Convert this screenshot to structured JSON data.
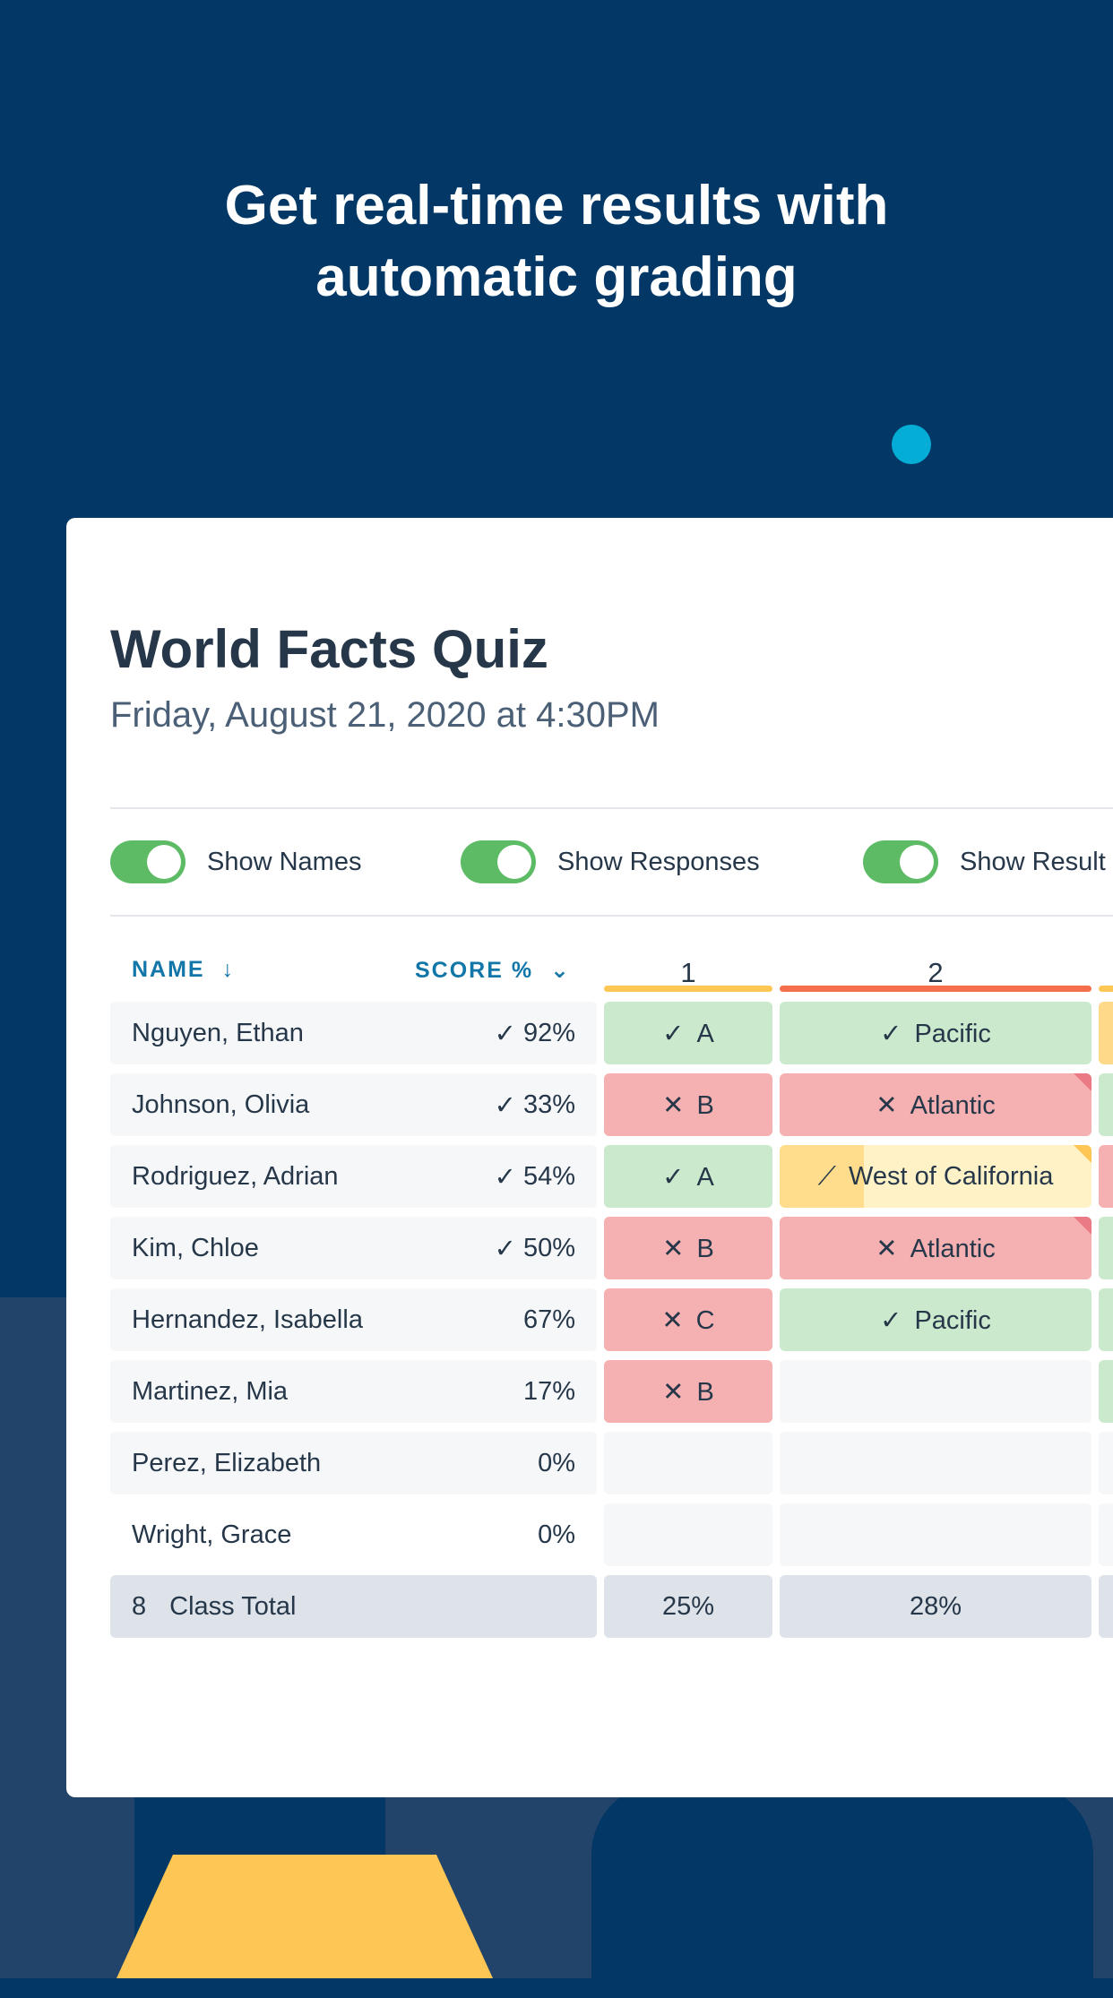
{
  "headline": [
    "Get real-time results with",
    "automatic grading"
  ],
  "quiz": {
    "title": "World Facts Quiz",
    "date": "Friday, August 21, 2020 at 4:30PM"
  },
  "toggles": [
    {
      "label": "Show Names",
      "on": true
    },
    {
      "label": "Show Responses",
      "on": true
    },
    {
      "label": "Show Result",
      "on": true
    }
  ],
  "table": {
    "name_header": "NAME",
    "name_sort_icon": "arrow-down-icon",
    "score_header": "SCORE %",
    "score_sort_icon": "chevron-down-icon",
    "questions": [
      {
        "label": "1",
        "color": "#fec654"
      },
      {
        "label": "2",
        "color": "#f46f4b"
      }
    ],
    "rows": [
      {
        "name": "Nguyen, Ethan",
        "check": "✓",
        "score": "92%",
        "answers": [
          {
            "status": "correct",
            "mark": "✓",
            "text": "A"
          },
          {
            "status": "correct",
            "mark": "✓",
            "text": "Pacific"
          }
        ]
      },
      {
        "name": "Johnson, Olivia",
        "check": "✓",
        "score": "33%",
        "answers": [
          {
            "status": "wrong",
            "mark": "✕",
            "text": "B"
          },
          {
            "status": "wrong",
            "mark": "✕",
            "text": "Atlantic",
            "flag": "red"
          }
        ]
      },
      {
        "name": "Rodriguez, Adrian",
        "check": "✓",
        "score": "54%",
        "answers": [
          {
            "status": "correct",
            "mark": "✓",
            "text": "A"
          },
          {
            "status": "partial",
            "mark": "⟋",
            "text": "West of California",
            "flag": "yellow"
          }
        ]
      },
      {
        "name": "Kim, Chloe",
        "check": "✓",
        "score": "50%",
        "answers": [
          {
            "status": "wrong",
            "mark": "✕",
            "text": "B"
          },
          {
            "status": "wrong",
            "mark": "✕",
            "text": "Atlantic",
            "flag": "red"
          }
        ]
      },
      {
        "name": "Hernandez, Isabella",
        "check": "",
        "score": "67%",
        "answers": [
          {
            "status": "wrong",
            "mark": "✕",
            "text": "C"
          },
          {
            "status": "correct",
            "mark": "✓",
            "text": "Pacific"
          }
        ]
      },
      {
        "name": "Martinez, Mia",
        "check": "",
        "score": "17%",
        "answers": [
          {
            "status": "wrong",
            "mark": "✕",
            "text": "B"
          },
          {
            "status": "empty",
            "mark": "",
            "text": ""
          }
        ]
      },
      {
        "name": "Perez, Elizabeth",
        "check": "",
        "score": "0%",
        "answers": [
          {
            "status": "empty",
            "mark": "",
            "text": ""
          },
          {
            "status": "empty",
            "mark": "",
            "text": ""
          }
        ]
      },
      {
        "name": "Wright, Grace",
        "check": "",
        "score": "0%",
        "answers": [
          {
            "status": "empty",
            "mark": "",
            "text": ""
          },
          {
            "status": "empty",
            "mark": "",
            "text": ""
          }
        ]
      }
    ],
    "third_column_statuses": [
      "partial",
      "correct",
      "wrong",
      "correct",
      "correct",
      "correct",
      "empty",
      "empty",
      "total"
    ],
    "total": {
      "count": "8",
      "label": "Class Total",
      "values": [
        "25%",
        "28%"
      ]
    }
  }
}
